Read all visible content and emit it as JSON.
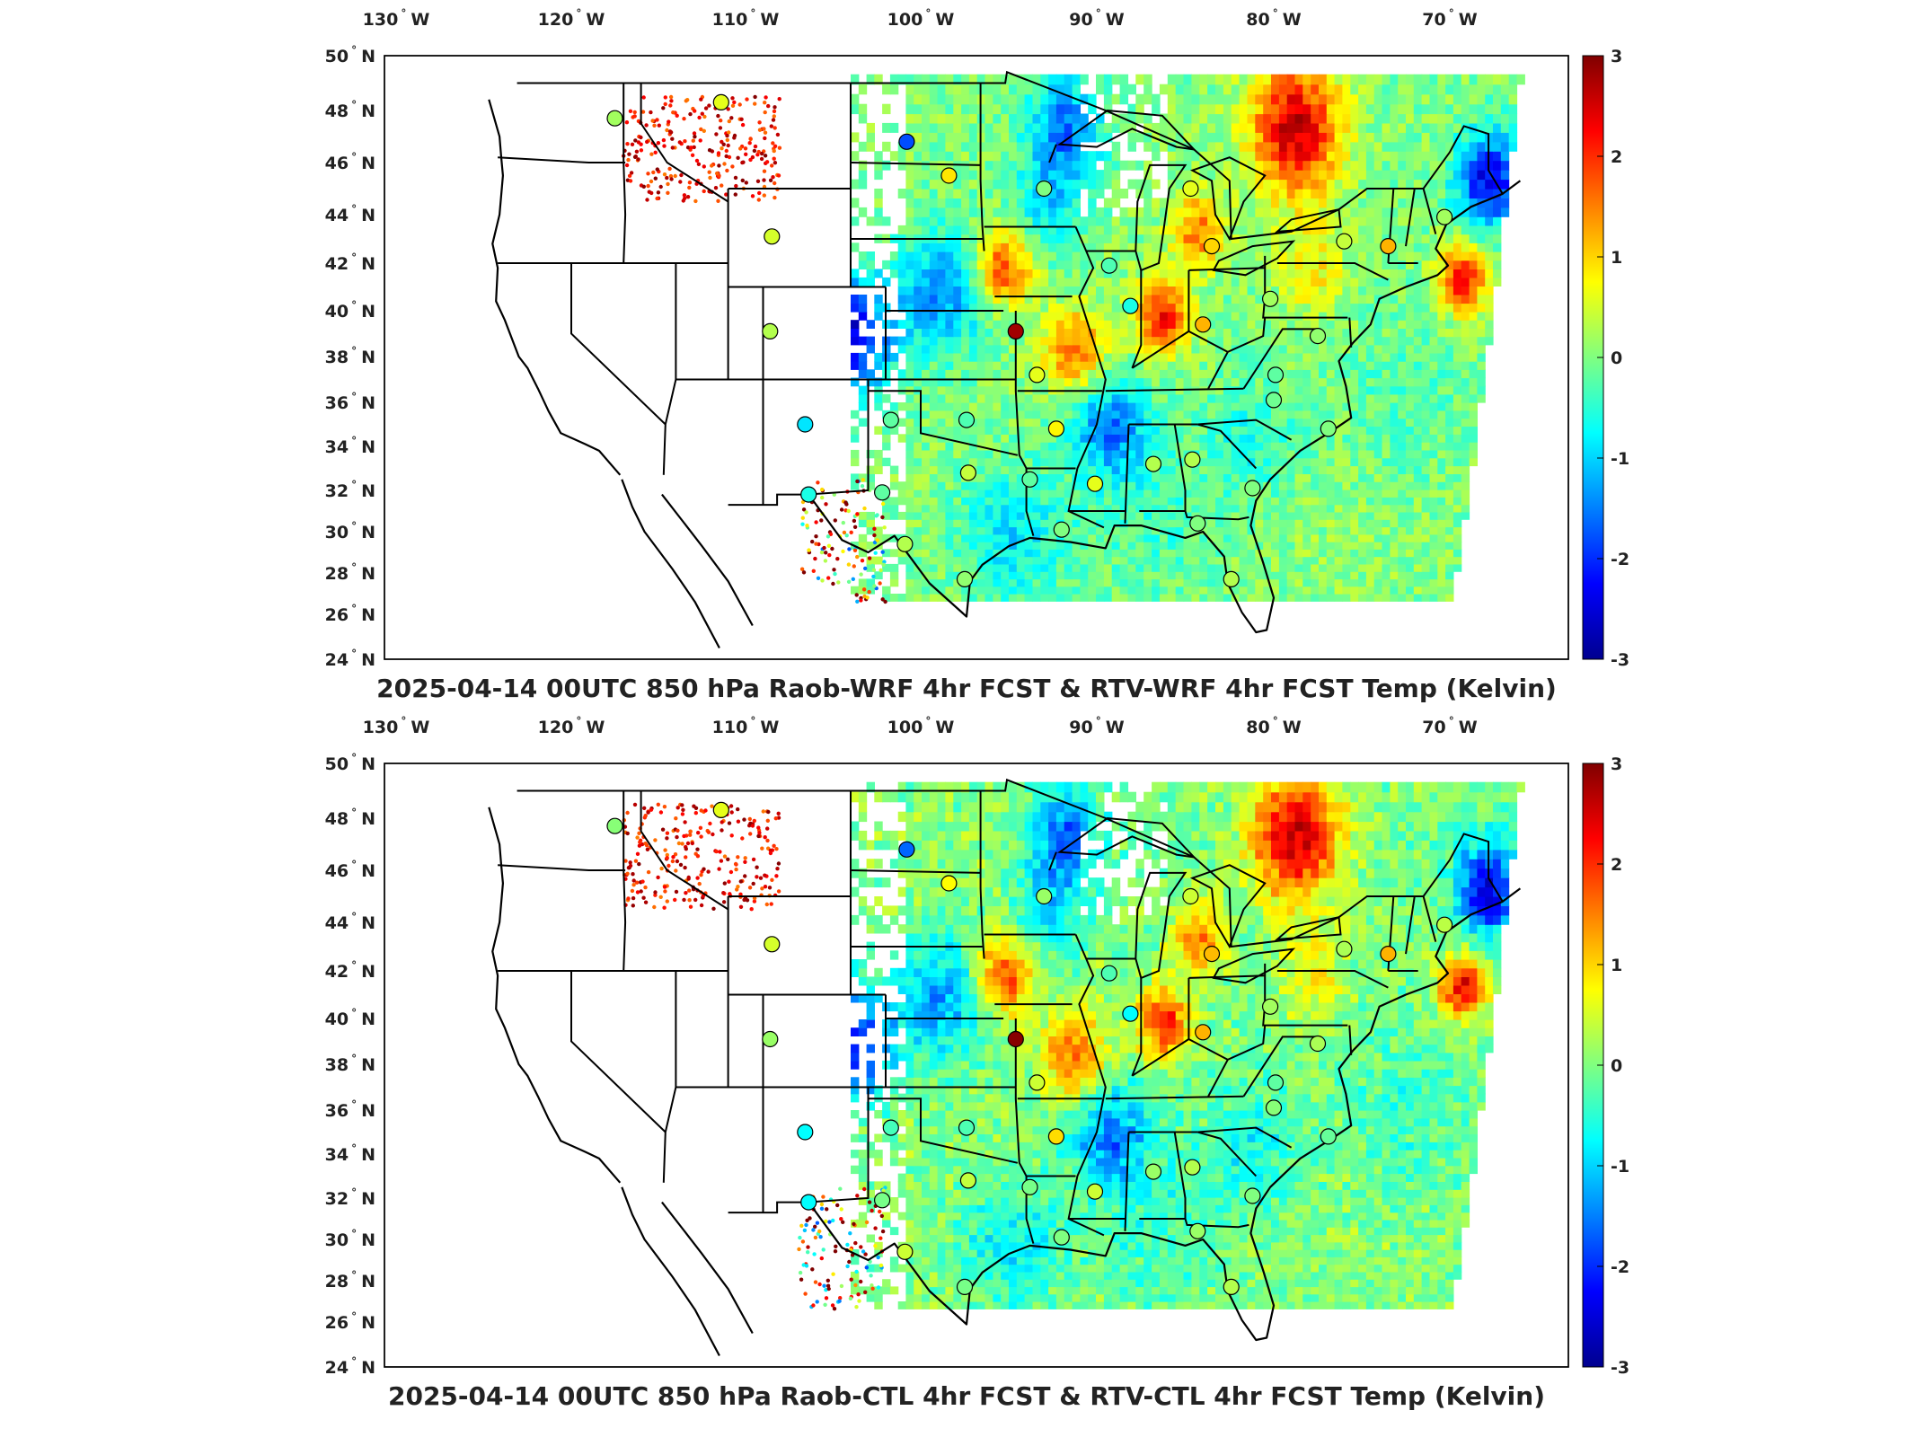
{
  "figure": {
    "panels": [
      {
        "id": "top",
        "title": "2025-04-14 00UTC 850 hPa Raob-WRF 4hr FCST & RTV-WRF 4hr FCST Temp (Kelvin)",
        "lon_ticks": [
          {
            "v": "130",
            "d": "W"
          },
          {
            "v": "120",
            "d": "W"
          },
          {
            "v": "110",
            "d": "W"
          },
          {
            "v": "100",
            "d": "W"
          },
          {
            "v": "90",
            "d": "W"
          },
          {
            "v": "80",
            "d": "W"
          },
          {
            "v": "70",
            "d": "W"
          }
        ],
        "lat_ticks": [
          {
            "v": "50",
            "d": "N"
          },
          {
            "v": "48",
            "d": "N"
          },
          {
            "v": "46",
            "d": "N"
          },
          {
            "v": "44",
            "d": "N"
          },
          {
            "v": "42",
            "d": "N"
          },
          {
            "v": "40",
            "d": "N"
          },
          {
            "v": "38",
            "d": "N"
          },
          {
            "v": "36",
            "d": "N"
          },
          {
            "v": "34",
            "d": "N"
          },
          {
            "v": "32",
            "d": "N"
          },
          {
            "v": "30",
            "d": "N"
          },
          {
            "v": "28",
            "d": "N"
          },
          {
            "v": "26",
            "d": "N"
          },
          {
            "v": "24",
            "d": "N"
          }
        ],
        "colorbar": {
          "ticks": [
            "3",
            "2",
            "1",
            "0",
            "-1",
            "-2",
            "-3"
          ],
          "min": -3,
          "max": 3
        }
      },
      {
        "id": "bottom",
        "title": "2025-04-14 00UTC 850 hPa Raob-CTL 4hr FCST & RTV-CTL 4hr FCST Temp (Kelvin)",
        "lon_ticks": [
          {
            "v": "130",
            "d": "W"
          },
          {
            "v": "120",
            "d": "W"
          },
          {
            "v": "110",
            "d": "W"
          },
          {
            "v": "100",
            "d": "W"
          },
          {
            "v": "90",
            "d": "W"
          },
          {
            "v": "80",
            "d": "W"
          },
          {
            "v": "70",
            "d": "W"
          }
        ],
        "lat_ticks": [
          {
            "v": "50",
            "d": "N"
          },
          {
            "v": "48",
            "d": "N"
          },
          {
            "v": "46",
            "d": "N"
          },
          {
            "v": "44",
            "d": "N"
          },
          {
            "v": "42",
            "d": "N"
          },
          {
            "v": "40",
            "d": "N"
          },
          {
            "v": "38",
            "d": "N"
          },
          {
            "v": "36",
            "d": "N"
          },
          {
            "v": "34",
            "d": "N"
          },
          {
            "v": "32",
            "d": "N"
          },
          {
            "v": "30",
            "d": "N"
          },
          {
            "v": "28",
            "d": "N"
          },
          {
            "v": "26",
            "d": "N"
          },
          {
            "v": "24",
            "d": "N"
          }
        ],
        "colorbar": {
          "ticks": [
            "3",
            "2",
            "1",
            "0",
            "-1",
            "-2",
            "-3"
          ],
          "min": -3,
          "max": 3
        }
      }
    ],
    "colormap": [
      "#00008f",
      "#0000ff",
      "#0080ff",
      "#00ffff",
      "#80ff80",
      "#ffff00",
      "#ff8000",
      "#ff0000",
      "#800000"
    ],
    "raob_stations": [
      {
        "lon": -117.5,
        "lat": 47.7,
        "val": 0.2
      },
      {
        "lon": -111.4,
        "lat": 48.3,
        "val": 0.6
      },
      {
        "lon": -100.8,
        "lat": 46.8,
        "val": -1.8
      },
      {
        "lon": -98.4,
        "lat": 45.5,
        "val": 0.9
      },
      {
        "lon": -108.5,
        "lat": 43.1,
        "val": 0.5
      },
      {
        "lon": -93.0,
        "lat": 45.0,
        "val": 0.0
      },
      {
        "lon": -84.7,
        "lat": 45.0,
        "val": 0.6
      },
      {
        "lon": -89.3,
        "lat": 41.9,
        "val": -0.3
      },
      {
        "lon": -83.5,
        "lat": 42.7,
        "val": 1.0
      },
      {
        "lon": -76.0,
        "lat": 42.9,
        "val": 0.4
      },
      {
        "lon": -73.5,
        "lat": 42.7,
        "val": 1.2
      },
      {
        "lon": -70.3,
        "lat": 43.9,
        "val": 0.2
      },
      {
        "lon": -88.1,
        "lat": 40.2,
        "val": -0.6
      },
      {
        "lon": -80.2,
        "lat": 40.5,
        "val": 0.2
      },
      {
        "lon": -94.6,
        "lat": 39.1,
        "val": 2.8
      },
      {
        "lon": -108.6,
        "lat": 39.1,
        "val": 0.3
      },
      {
        "lon": -84.0,
        "lat": 39.4,
        "val": 1.2
      },
      {
        "lon": -77.5,
        "lat": 38.9,
        "val": 0.1
      },
      {
        "lon": -93.4,
        "lat": 37.2,
        "val": 0.6
      },
      {
        "lon": -79.9,
        "lat": 37.2,
        "val": -0.2
      },
      {
        "lon": -106.6,
        "lat": 35.0,
        "val": -0.9
      },
      {
        "lon": -101.7,
        "lat": 35.2,
        "val": -0.2
      },
      {
        "lon": -97.4,
        "lat": 35.2,
        "val": -0.3
      },
      {
        "lon": -92.3,
        "lat": 34.8,
        "val": 0.8
      },
      {
        "lon": -86.8,
        "lat": 33.2,
        "val": 0.3
      },
      {
        "lon": -84.6,
        "lat": 33.4,
        "val": 0.3
      },
      {
        "lon": -80.0,
        "lat": 36.1,
        "val": -0.1
      },
      {
        "lon": -76.9,
        "lat": 34.8,
        "val": 0.0
      },
      {
        "lon": -97.3,
        "lat": 32.8,
        "val": 0.4
      },
      {
        "lon": -93.8,
        "lat": 32.5,
        "val": -0.2
      },
      {
        "lon": -90.1,
        "lat": 32.3,
        "val": 0.6
      },
      {
        "lon": -81.2,
        "lat": 32.1,
        "val": 0.0
      },
      {
        "lon": -102.2,
        "lat": 31.9,
        "val": -0.2
      },
      {
        "lon": -106.4,
        "lat": 31.8,
        "val": -0.6
      },
      {
        "lon": -92.0,
        "lat": 30.1,
        "val": 0.0
      },
      {
        "lon": -100.9,
        "lat": 29.4,
        "val": 0.3
      },
      {
        "lon": -97.5,
        "lat": 27.7,
        "val": 0.1
      },
      {
        "lon": -82.4,
        "lat": 27.7,
        "val": 0.3
      },
      {
        "lon": -84.3,
        "lat": 30.4,
        "val": 0.0
      }
    ],
    "retrieval_field": {
      "east_boundary": [
        [
          -66.5,
          47.5
        ],
        [
          -70.0,
          27.0
        ]
      ],
      "north_bound_lat": 49.5,
      "south_bound_lat": 27.0,
      "west_bound_lon": -104.0,
      "features": [
        {
          "lon": -104.5,
          "lat": 39.0,
          "val": -2.6,
          "r": 2.5
        },
        {
          "lon": -99.0,
          "lat": 41.0,
          "val": -1.4,
          "r": 2.5
        },
        {
          "lon": -95.5,
          "lat": 42.0,
          "val": 1.9,
          "r": 1.6
        },
        {
          "lon": -91.5,
          "lat": 38.5,
          "val": 1.6,
          "r": 1.8
        },
        {
          "lon": -86.5,
          "lat": 40.0,
          "val": 2.2,
          "r": 1.5
        },
        {
          "lon": -84.5,
          "lat": 43.5,
          "val": 1.6,
          "r": 1.5
        },
        {
          "lon": -79.0,
          "lat": 47.5,
          "val": 2.6,
          "r": 2.5
        },
        {
          "lon": -69.5,
          "lat": 41.5,
          "val": 2.4,
          "r": 1.3
        },
        {
          "lon": -68.0,
          "lat": 45.5,
          "val": -2.4,
          "r": 1.8
        },
        {
          "lon": -92.0,
          "lat": 47.5,
          "val": -1.6,
          "r": 2.0
        },
        {
          "lon": -93.0,
          "lat": 44.5,
          "val": -0.8,
          "r": 2.0
        },
        {
          "lon": -89.5,
          "lat": 35.0,
          "val": -1.5,
          "r": 2.2
        },
        {
          "lon": -87.0,
          "lat": 31.0,
          "val": -0.4,
          "r": 3.5
        },
        {
          "lon": -95.0,
          "lat": 30.0,
          "val": -0.9,
          "r": 3.0
        },
        {
          "lon": -76.0,
          "lat": 30.5,
          "val": 0.1,
          "r": 4.0
        },
        {
          "lon": -73.0,
          "lat": 36.0,
          "val": -0.3,
          "r": 3.5
        },
        {
          "lon": -81.5,
          "lat": 34.5,
          "val": -0.6,
          "r": 2.5
        },
        {
          "lon": -78.0,
          "lat": 42.0,
          "val": 0.8,
          "r": 2.0
        }
      ]
    }
  }
}
